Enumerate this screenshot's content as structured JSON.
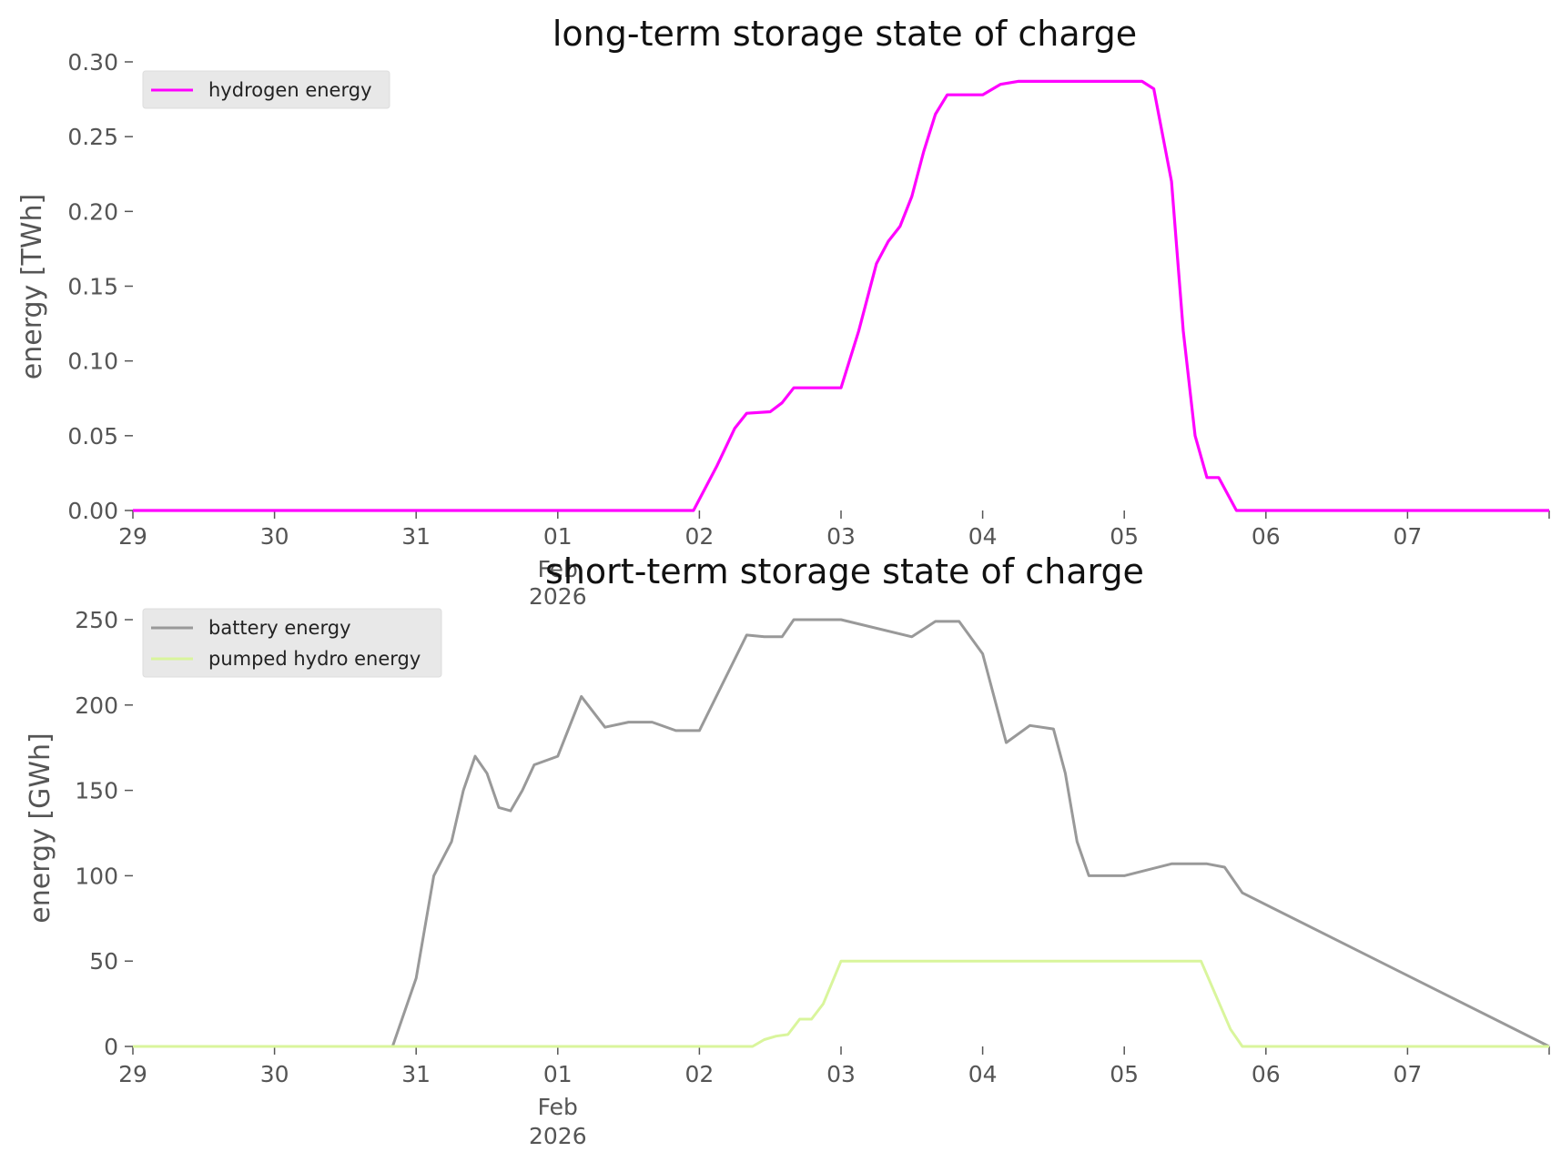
{
  "chart_data": [
    {
      "type": "line",
      "title": "long-term storage state of charge",
      "xlabel": "",
      "ylabel": "energy [TWh]",
      "ylim": [
        0,
        0.3
      ],
      "yticks": [
        "0.00",
        "0.05",
        "0.10",
        "0.15",
        "0.20",
        "0.25",
        "0.30"
      ],
      "xlim": [
        "2026-01-29",
        "2026-02-08"
      ],
      "xticks": [
        "29",
        "30",
        "31",
        "01",
        "02",
        "03",
        "04",
        "05",
        "06",
        "07"
      ],
      "xtick_sublabel": {
        "tick": "01",
        "lines": [
          "Feb",
          "2026"
        ]
      },
      "legend_position": "top-left",
      "grid": false,
      "series": [
        {
          "name": "hydrogen energy",
          "color": "#ff00ff",
          "x": [
            "2026-01-29 00:00",
            "2026-02-01 23:00",
            "2026-02-02 03:00",
            "2026-02-02 06:00",
            "2026-02-02 08:00",
            "2026-02-02 12:00",
            "2026-02-02 14:00",
            "2026-02-02 16:00",
            "2026-02-02 19:00",
            "2026-02-03 00:00",
            "2026-02-03 03:00",
            "2026-02-03 06:00",
            "2026-02-03 08:00",
            "2026-02-03 10:00",
            "2026-02-03 12:00",
            "2026-02-03 14:00",
            "2026-02-03 16:00",
            "2026-02-03 18:00",
            "2026-02-03 20:00",
            "2026-02-03 22:00",
            "2026-02-04 00:00",
            "2026-02-04 03:00",
            "2026-02-04 06:00",
            "2026-02-05 03:00",
            "2026-02-05 05:00",
            "2026-02-05 08:00",
            "2026-02-05 10:00",
            "2026-02-05 12:00",
            "2026-02-05 14:00",
            "2026-02-05 16:00",
            "2026-02-05 19:00",
            "2026-02-05 21:00",
            "2026-02-05 23:00",
            "2026-02-06 00:00",
            "2026-02-08 00:00"
          ],
          "y": [
            0.0,
            0.0,
            0.03,
            0.055,
            0.065,
            0.066,
            0.072,
            0.082,
            0.082,
            0.082,
            0.12,
            0.165,
            0.18,
            0.19,
            0.21,
            0.24,
            0.265,
            0.278,
            0.278,
            0.278,
            0.278,
            0.285,
            0.287,
            0.287,
            0.282,
            0.22,
            0.12,
            0.05,
            0.022,
            0.022,
            0.0,
            0.0,
            0.0,
            0.0,
            0.0
          ]
        }
      ]
    },
    {
      "type": "line",
      "title": "short-term storage state of charge",
      "xlabel": "",
      "ylabel": "energy [GWh]",
      "ylim": [
        0,
        250
      ],
      "yticks": [
        "0",
        "50",
        "100",
        "150",
        "200",
        "250"
      ],
      "xlim": [
        "2026-01-29",
        "2026-02-08"
      ],
      "xticks": [
        "29",
        "30",
        "31",
        "01",
        "02",
        "03",
        "04",
        "05",
        "06",
        "07"
      ],
      "xtick_sublabel": {
        "tick": "01",
        "lines": [
          "Feb",
          "2026"
        ]
      },
      "legend_position": "top-left",
      "grid": false,
      "series": [
        {
          "name": "battery energy",
          "color": "#999999",
          "x": [
            "2026-01-29 00:00",
            "2026-01-30 20:00",
            "2026-01-31 00:00",
            "2026-01-31 03:00",
            "2026-01-31 06:00",
            "2026-01-31 08:00",
            "2026-01-31 10:00",
            "2026-01-31 12:00",
            "2026-01-31 14:00",
            "2026-01-31 16:00",
            "2026-01-31 18:00",
            "2026-01-31 20:00",
            "2026-02-01 00:00",
            "2026-02-01 04:00",
            "2026-02-01 08:00",
            "2026-02-01 12:00",
            "2026-02-01 14:00",
            "2026-02-01 16:00",
            "2026-02-01 20:00",
            "2026-02-02 00:00",
            "2026-02-02 08:00",
            "2026-02-02 11:00",
            "2026-02-02 14:00",
            "2026-02-02 16:00",
            "2026-02-02 18:00",
            "2026-02-03 00:00",
            "2026-02-03 12:00",
            "2026-02-03 16:00",
            "2026-02-03 20:00",
            "2026-02-04 00:00",
            "2026-02-04 04:00",
            "2026-02-04 08:00",
            "2026-02-04 12:00",
            "2026-02-04 14:00",
            "2026-02-04 16:00",
            "2026-02-04 18:00",
            "2026-02-05 00:00",
            "2026-02-05 08:00",
            "2026-02-05 12:00",
            "2026-02-05 14:00",
            "2026-02-05 17:00",
            "2026-02-05 20:00",
            "2026-02-08 00:00"
          ],
          "y": [
            0,
            0,
            40,
            100,
            120,
            150,
            170,
            160,
            140,
            138,
            150,
            165,
            170,
            205,
            187,
            190,
            190,
            190,
            185,
            185,
            241,
            240,
            240,
            250,
            250,
            250,
            240,
            249,
            249,
            230,
            178,
            188,
            186,
            160,
            120,
            100,
            100,
            107,
            107,
            107,
            105,
            90,
            0
          ],
          "note": ""
        },
        {
          "name": "pumped hydro energy",
          "color": "#d9f59c",
          "x": [
            "2026-01-29 00:00",
            "2026-02-02 09:00",
            "2026-02-02 11:00",
            "2026-02-02 13:00",
            "2026-02-02 15:00",
            "2026-02-02 17:00",
            "2026-02-02 19:00",
            "2026-02-02 21:00",
            "2026-02-03 00:00",
            "2026-02-05 13:00",
            "2026-02-05 18:00",
            "2026-02-05 20:00",
            "2026-02-08 00:00"
          ],
          "y": [
            0,
            0,
            4,
            6,
            7,
            16,
            16,
            25,
            50,
            50,
            10,
            0,
            0
          ]
        }
      ]
    }
  ]
}
